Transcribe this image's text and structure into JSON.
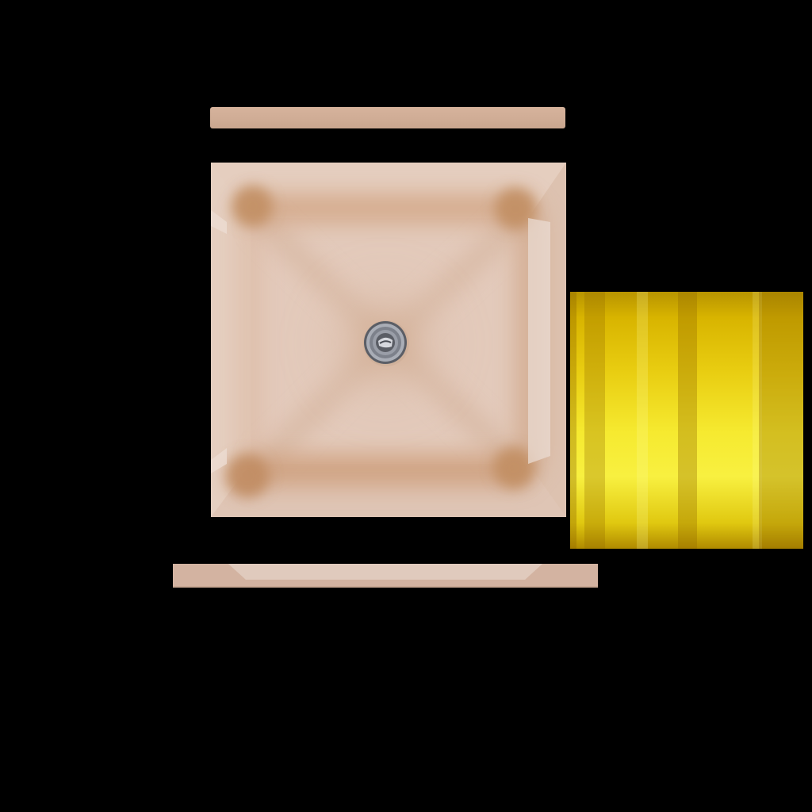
{
  "scene": {
    "background_color": "#000000",
    "parts": [
      {
        "name": "top-strip",
        "color": "#d4b09a"
      },
      {
        "name": "basin",
        "color": "#e2c8b8",
        "stain_color": "#c48c60"
      },
      {
        "name": "drain",
        "color": "#8a8d96"
      },
      {
        "name": "bottom-strip",
        "color": "#dcc3b4"
      },
      {
        "name": "gold-block",
        "color": "#f0dc20"
      }
    ]
  }
}
